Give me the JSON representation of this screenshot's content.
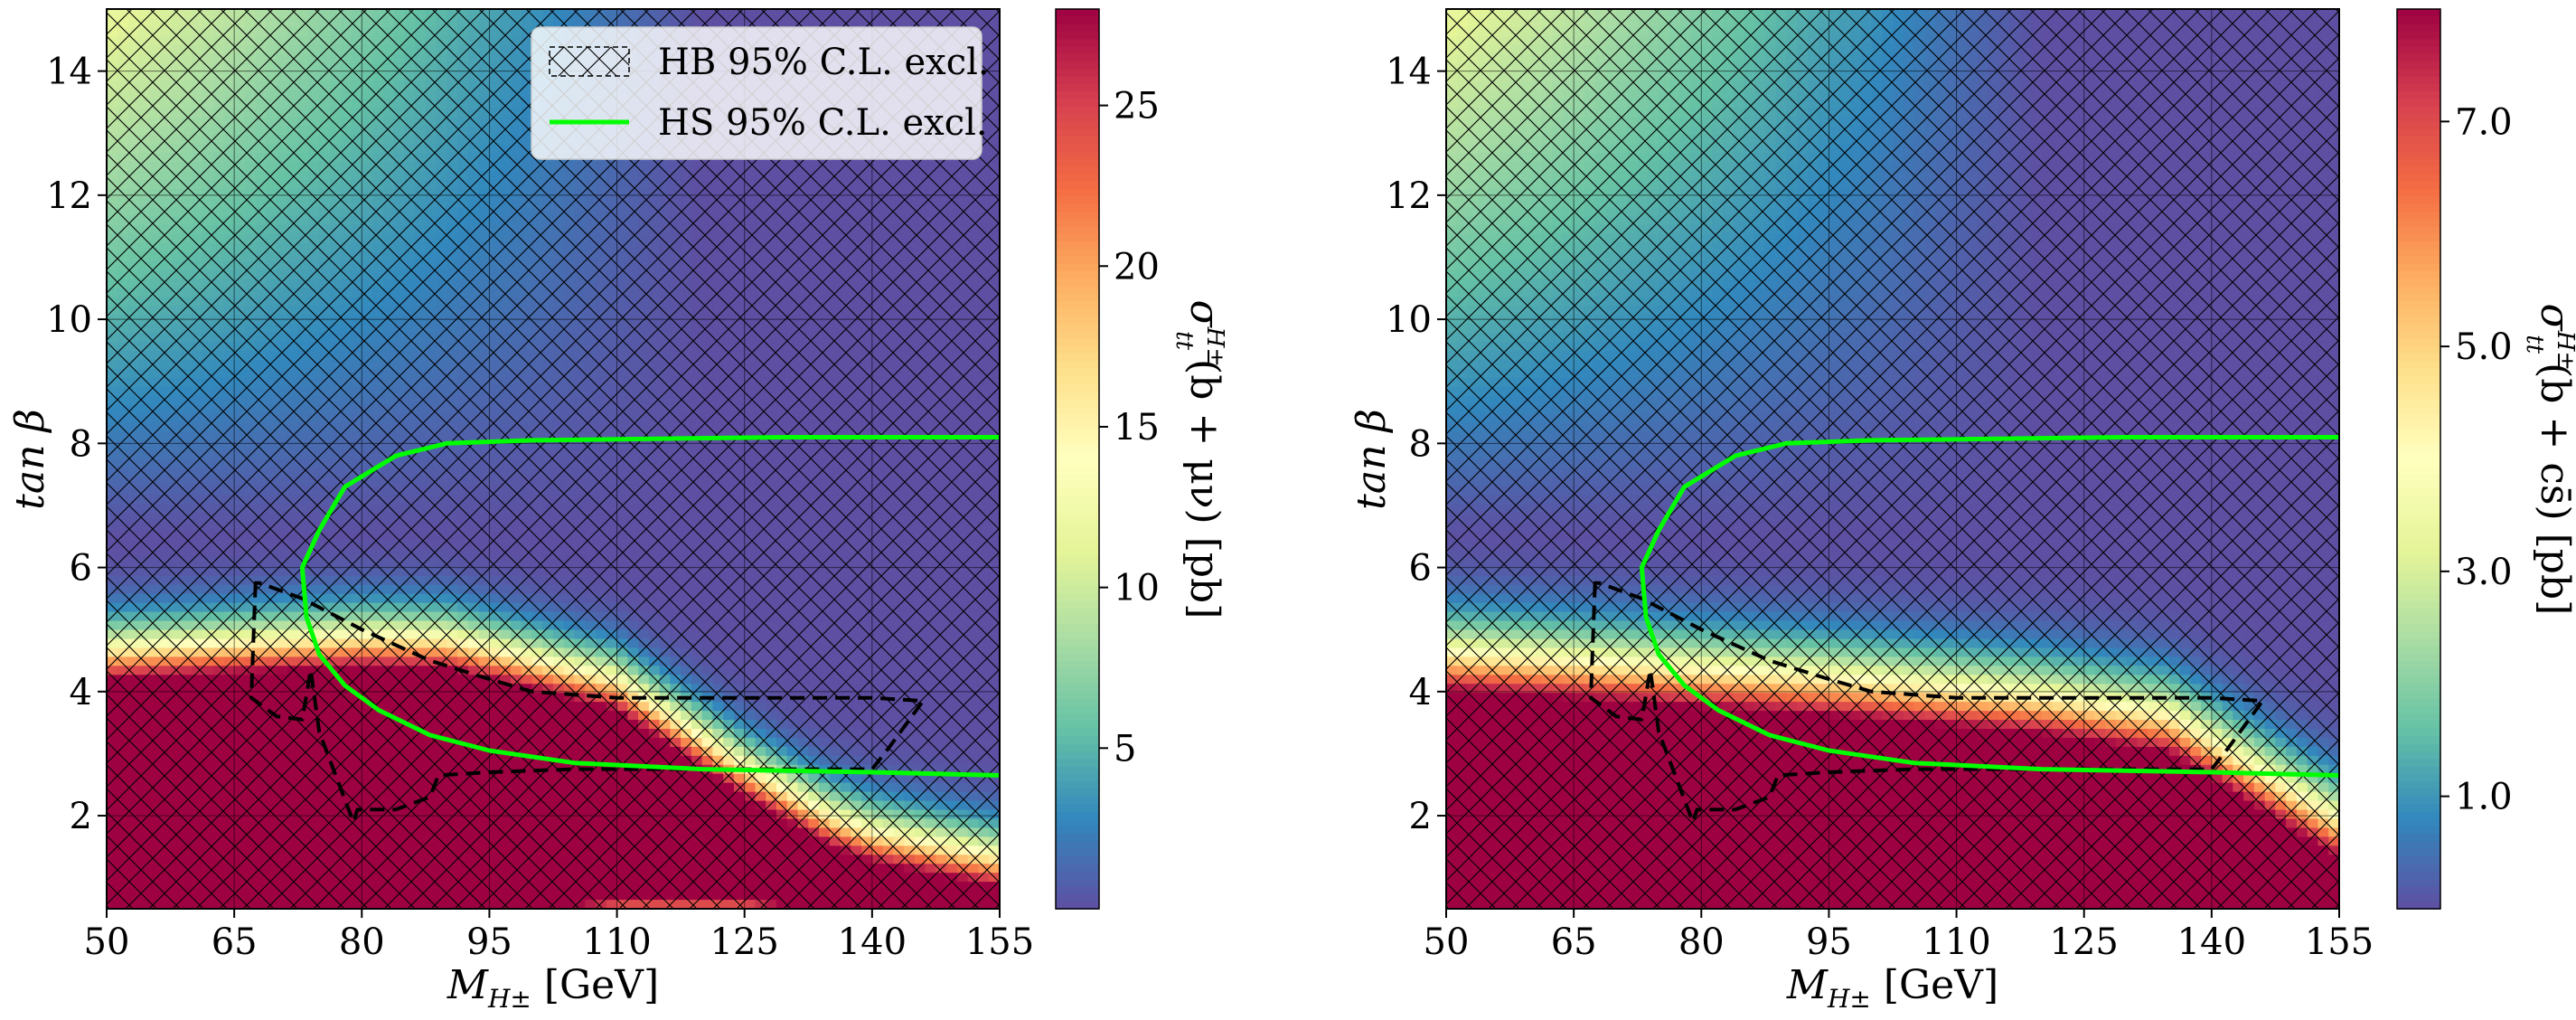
{
  "chart_data": [
    {
      "type": "heatmap",
      "panel": "left",
      "xlabel": "M_{H±} [GeV]",
      "xlabel_main": "M",
      "xlabel_sub": "H±",
      "xlabel_unit": " [GeV]",
      "ylabel": "tan β",
      "xlim": [
        50,
        155
      ],
      "ylim": [
        0.5,
        15
      ],
      "xticks": [
        50,
        65,
        80,
        95,
        110,
        125,
        140,
        155
      ],
      "yticks": [
        2,
        4,
        6,
        8,
        10,
        12,
        14
      ],
      "grid": true,
      "colorbar": {
        "label": "σ_{tt}^{H±}(b + μν) [pb]",
        "label_text": "σ",
        "label_sup": "H±",
        "label_sub": "tt",
        "label_rest": "(b + μν) [pb]",
        "min": 0,
        "max": 28,
        "ticks": [
          5,
          10,
          15,
          20,
          25
        ],
        "colormap": "Spectral_r"
      },
      "field": {
        "kind": "narrow",
        "band_center_mass": [
          [
            50,
            2.1
          ],
          [
            80,
            2.3
          ],
          [
            110,
            2.2
          ],
          [
            125,
            1.5
          ],
          [
            140,
            0.7
          ],
          [
            155,
            0.3
          ]
        ],
        "band_halfwidth_mass": [
          [
            50,
            1.6
          ],
          [
            90,
            1.6
          ],
          [
            110,
            1.0
          ],
          [
            125,
            0.3
          ],
          [
            135,
            0.05
          ],
          [
            155,
            0.05
          ]
        ],
        "upper_tail": "cross-section rises toward low mass and large tan β"
      },
      "hb_exclusion_contour": [
        [
          67.5,
          5.75
        ],
        [
          67,
          3.9
        ],
        [
          70,
          3.6
        ],
        [
          73,
          3.55
        ],
        [
          74,
          4.35
        ],
        [
          75,
          3.35
        ],
        [
          79,
          1.9
        ],
        [
          79.5,
          2.1
        ],
        [
          84,
          2.1
        ],
        [
          88,
          2.3
        ],
        [
          89,
          2.65
        ],
        [
          95,
          2.7
        ],
        [
          105,
          2.75
        ],
        [
          120,
          2.75
        ],
        [
          140,
          2.75
        ],
        [
          142,
          3.1
        ],
        [
          146,
          3.85
        ],
        [
          140,
          3.9
        ],
        [
          110,
          3.9
        ],
        [
          100,
          4.0
        ],
        [
          95,
          4.2
        ],
        [
          88,
          4.5
        ],
        [
          80,
          5.0
        ],
        [
          73,
          5.5
        ],
        [
          68,
          5.75
        ]
      ],
      "hs_exclusion_contour": [
        [
          155,
          8.1
        ],
        [
          130,
          8.1
        ],
        [
          100,
          8.05
        ],
        [
          90,
          8.0
        ],
        [
          84,
          7.8
        ],
        [
          78,
          7.3
        ],
        [
          75,
          6.6
        ],
        [
          73,
          6.0
        ],
        [
          73.5,
          5.2
        ],
        [
          75,
          4.6
        ],
        [
          78,
          4.1
        ],
        [
          82,
          3.7
        ],
        [
          88,
          3.3
        ],
        [
          95,
          3.05
        ],
        [
          105,
          2.85
        ],
        [
          120,
          2.75
        ],
        [
          140,
          2.7
        ],
        [
          155,
          2.65
        ]
      ],
      "legend": {
        "location": "top-right",
        "entries": [
          {
            "label": "HB 95% C.L. excl.",
            "style": "hatched"
          },
          {
            "label": "HS 95% C.L. excl.",
            "style": "green-line"
          }
        ]
      }
    },
    {
      "type": "heatmap",
      "panel": "right",
      "xlabel": "M_{H±} [GeV]",
      "xlabel_main": "M",
      "xlabel_sub": "H±",
      "xlabel_unit": " [GeV]",
      "ylabel": "tan β",
      "xlim": [
        50,
        155
      ],
      "ylim": [
        0.5,
        15
      ],
      "xticks": [
        50,
        65,
        80,
        95,
        110,
        125,
        140,
        155
      ],
      "yticks": [
        2,
        4,
        6,
        8,
        10,
        12,
        14
      ],
      "grid": true,
      "colorbar": {
        "label": "σ_{tt}^{H±}(b + cs̄) [pb]",
        "label_text": "σ",
        "label_sup": "H±",
        "label_sub": "tt",
        "label_rest": "(b + cs̄) [pb]",
        "min": 0,
        "max": 8,
        "ticks": [
          1.0,
          3.0,
          5.0,
          7.0
        ],
        "tick_labels": [
          "1.0",
          "3.0",
          "5.0",
          "7.0"
        ],
        "colormap": "Spectral_r"
      },
      "field": {
        "kind": "wide",
        "red_top_mass": [
          [
            50,
            3.4
          ],
          [
            95,
            3.0
          ],
          [
            120,
            2.7
          ],
          [
            135,
            2.4
          ],
          [
            155,
            0.7
          ]
        ],
        "upper_tail": "cross-section rises toward low mass and large tan β"
      },
      "hb_exclusion_contour": [
        [
          67.5,
          5.75
        ],
        [
          67,
          3.9
        ],
        [
          70,
          3.6
        ],
        [
          73,
          3.55
        ],
        [
          74,
          4.35
        ],
        [
          75,
          3.35
        ],
        [
          79,
          1.9
        ],
        [
          79.5,
          2.1
        ],
        [
          84,
          2.1
        ],
        [
          88,
          2.3
        ],
        [
          89,
          2.65
        ],
        [
          95,
          2.7
        ],
        [
          105,
          2.75
        ],
        [
          120,
          2.75
        ],
        [
          140,
          2.75
        ],
        [
          142,
          3.1
        ],
        [
          146,
          3.85
        ],
        [
          140,
          3.9
        ],
        [
          110,
          3.9
        ],
        [
          100,
          4.0
        ],
        [
          95,
          4.2
        ],
        [
          88,
          4.5
        ],
        [
          80,
          5.0
        ],
        [
          73,
          5.5
        ],
        [
          68,
          5.75
        ]
      ],
      "hs_exclusion_contour": [
        [
          155,
          8.1
        ],
        [
          130,
          8.1
        ],
        [
          100,
          8.05
        ],
        [
          90,
          8.0
        ],
        [
          84,
          7.8
        ],
        [
          78,
          7.3
        ],
        [
          75,
          6.6
        ],
        [
          73,
          6.0
        ],
        [
          73.5,
          5.2
        ],
        [
          75,
          4.6
        ],
        [
          78,
          4.1
        ],
        [
          82,
          3.7
        ],
        [
          88,
          3.3
        ],
        [
          95,
          3.05
        ],
        [
          105,
          2.85
        ],
        [
          120,
          2.75
        ],
        [
          140,
          2.7
        ],
        [
          155,
          2.65
        ]
      ]
    }
  ]
}
